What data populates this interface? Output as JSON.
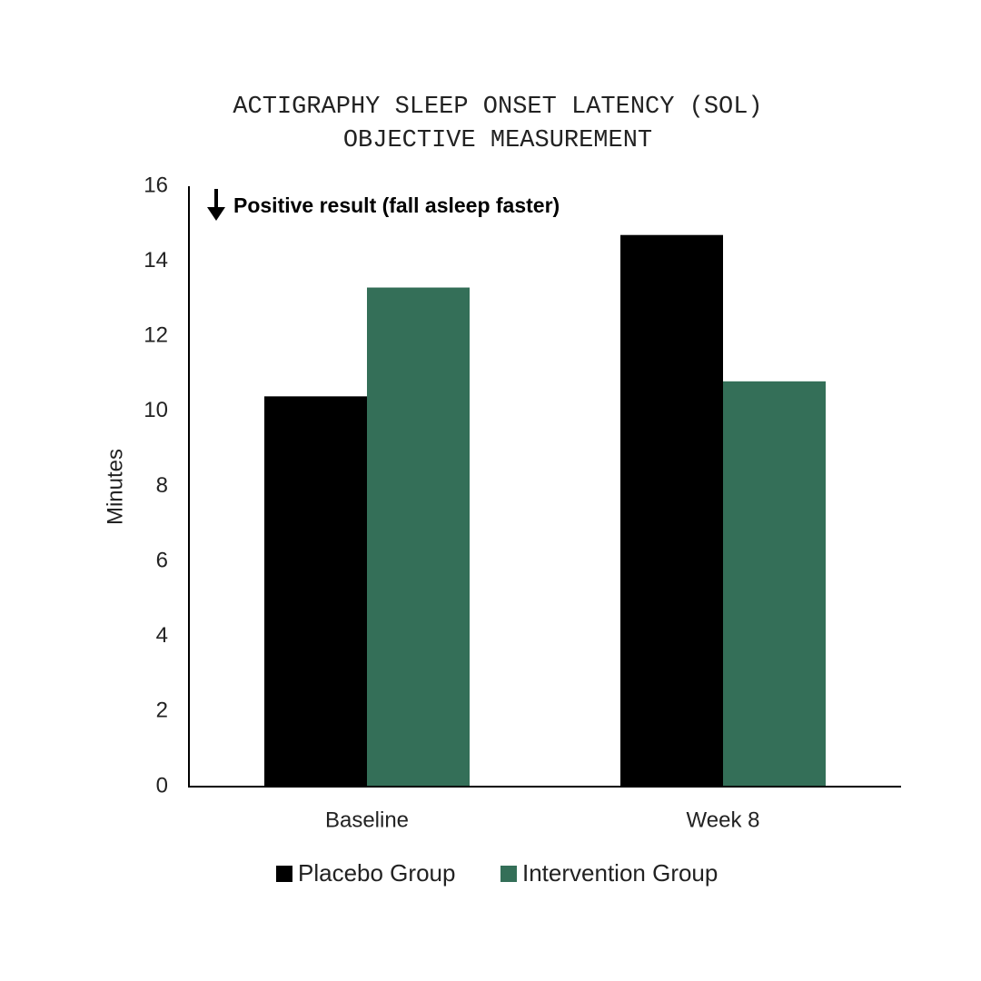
{
  "chart_data": {
    "type": "bar",
    "title": [
      "ACTIGRAPHY SLEEP ONSET LATENCY (SOL)",
      "OBJECTIVE MEASUREMENT"
    ],
    "annotation": "Positive result (fall asleep faster)",
    "y_label": "Minutes",
    "categories": [
      "Baseline",
      "Week 8"
    ],
    "series": [
      {
        "name": "Placebo Group",
        "color": "#000000",
        "values": [
          10.4,
          14.7
        ]
      },
      {
        "name": "Intervention Group",
        "color": "#346f58",
        "values": [
          13.3,
          10.8
        ]
      }
    ],
    "ylim": [
      0,
      16
    ],
    "yticks": [
      0,
      2,
      4,
      6,
      8,
      10,
      12,
      14,
      16
    ],
    "grid": false
  }
}
